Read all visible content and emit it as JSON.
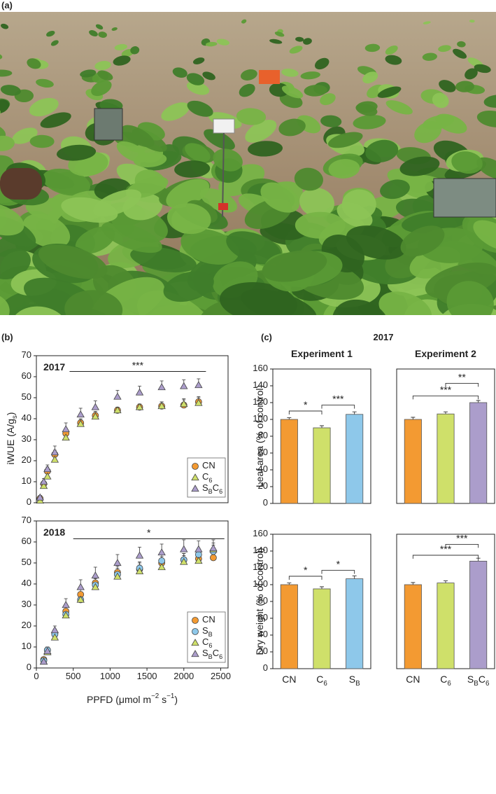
{
  "panel_labels": [
    "(a)",
    "(b)",
    "(c)"
  ],
  "panel_c_title": "2017",
  "chart_data": [
    {
      "type": "scatter",
      "label": "2017",
      "ylabel": "iWUE (A/gs)",
      "x": [
        50,
        100,
        150,
        250,
        400,
        600,
        800,
        1100,
        1400,
        1700,
        2000,
        2200
      ],
      "xlim": [
        0,
        2600
      ],
      "ylim": [
        0,
        70
      ],
      "yticks": [
        0,
        10,
        20,
        30,
        40,
        50,
        60,
        70
      ],
      "legend": "lower right",
      "series": [
        {
          "name": "CN",
          "color": "#f39a32",
          "marker": "circle",
          "values": [
            2,
            9,
            15,
            23,
            33,
            38,
            41.5,
            44,
            45.5,
            46,
            46.5,
            48
          ],
          "errors": [
            1,
            1.5,
            2,
            2,
            2,
            2,
            2,
            1.5,
            1.5,
            2,
            2.5,
            2.5
          ]
        },
        {
          "name": "C6",
          "color": "#cfe06a",
          "marker": "triangle",
          "values": [
            1,
            8,
            12.5,
            20.5,
            31,
            37.5,
            41,
            44,
            45.5,
            46,
            47,
            47.5
          ],
          "errors": [
            1,
            1.5,
            2,
            2,
            2,
            2,
            2,
            1.5,
            1.5,
            2,
            2.5,
            2.5
          ]
        },
        {
          "name": "SBC6",
          "color": "#ab9dcb",
          "marker": "triangle",
          "values": [
            2.5,
            10,
            16,
            24,
            35,
            42,
            45.5,
            50.5,
            52.5,
            55,
            55.5,
            56
          ],
          "errors": [
            1,
            1.5,
            2,
            3,
            3,
            3,
            3,
            3,
            3,
            3,
            3,
            3
          ]
        }
      ],
      "significance": {
        "label": "***",
        "xrange": [
          450,
          2300
        ],
        "y": 62.5
      }
    },
    {
      "type": "scatter",
      "label": "2018",
      "xlabel": "PPFD (μmol m−2 s−1)",
      "x": [
        100,
        150,
        250,
        400,
        600,
        800,
        1100,
        1400,
        1700,
        2000,
        2200,
        2400
      ],
      "xlim": [
        0,
        2600
      ],
      "xticks": [
        0,
        500,
        1000,
        1500,
        2000,
        2500
      ],
      "ylim": [
        0,
        70
      ],
      "yticks": [
        0,
        10,
        20,
        30,
        40,
        50,
        60,
        70
      ],
      "legend": "lower right",
      "series": [
        {
          "name": "CN",
          "color": "#f39a32",
          "marker": "circle",
          "values": [
            4,
            8.5,
            16.5,
            27,
            35,
            40.5,
            45.5,
            47,
            50,
            51.5,
            52,
            52.5
          ],
          "errors": [
            1,
            1.5,
            2,
            2.5,
            3,
            3,
            3,
            3,
            3,
            3,
            3,
            3
          ]
        },
        {
          "name": "SB",
          "color": "#8ec8ea",
          "marker": "circle",
          "values": [
            3.5,
            8.5,
            16,
            25.5,
            32.5,
            39.5,
            44.5,
            47.5,
            51,
            51.5,
            54,
            55.5
          ],
          "errors": [
            1,
            1.5,
            2,
            2.5,
            3,
            3,
            3,
            3,
            3,
            3,
            3,
            3
          ]
        },
        {
          "name": "C6",
          "color": "#cfe06a",
          "marker": "triangle",
          "values": [
            3,
            7.5,
            14.5,
            25,
            32.5,
            38.5,
            43.5,
            46,
            48,
            50.5,
            51,
            56.5
          ],
          "errors": [
            1,
            1.5,
            2,
            2.5,
            3,
            3,
            3,
            3,
            3,
            3,
            3,
            3
          ]
        },
        {
          "name": "SBC6",
          "color": "#ab9dcb",
          "marker": "triangle",
          "values": [
            3,
            8,
            18,
            30,
            38.5,
            44,
            50,
            53.5,
            55,
            56.5,
            56.5,
            57
          ],
          "errors": [
            1,
            1.5,
            2,
            3,
            3.5,
            4,
            4,
            4,
            4,
            4.5,
            4,
            4
          ]
        }
      ],
      "significance": {
        "label": "*",
        "xrange": [
          500,
          2550
        ],
        "y": 61.5
      }
    },
    {
      "type": "bar",
      "subtitle": "Experiment 1",
      "ylabel": "Leaf area (% of control)",
      "values": [
        100,
        90,
        106
      ],
      "errors": [
        2,
        2.5,
        3
      ],
      "colors": [
        "#f39a32",
        "#cfe06a",
        "#8ec8ea"
      ],
      "ylim": [
        0,
        160
      ],
      "yticks": [
        0,
        20,
        40,
        60,
        80,
        100,
        120,
        140,
        160
      ],
      "brackets": [
        {
          "between": [
            0,
            1
          ],
          "y": 110,
          "label": "*"
        },
        {
          "between": [
            1,
            2
          ],
          "y": 117,
          "label": "***"
        }
      ]
    },
    {
      "type": "bar",
      "subtitle": "Experiment 2",
      "values": [
        100,
        106.5,
        120
      ],
      "errors": [
        2.5,
        2.5,
        2.5
      ],
      "colors": [
        "#f39a32",
        "#cfe06a",
        "#ab9dcb"
      ],
      "ylim": [
        0,
        160
      ],
      "brackets": [
        {
          "between": [
            1,
            2
          ],
          "y": 143,
          "label": "**"
        },
        {
          "between": [
            0,
            2
          ],
          "y": 128,
          "label": "***"
        }
      ]
    },
    {
      "type": "bar",
      "ylabel": "Dry weight (% of control)",
      "categories": [
        "CN",
        "C6",
        "SB"
      ],
      "values": [
        100,
        95,
        107
      ],
      "errors": [
        2,
        2.5,
        3.5
      ],
      "colors": [
        "#f39a32",
        "#cfe06a",
        "#8ec8ea"
      ],
      "ylim": [
        0,
        160
      ],
      "yticks": [
        0,
        20,
        40,
        60,
        80,
        100,
        120,
        140,
        160
      ],
      "brackets": [
        {
          "between": [
            0,
            1
          ],
          "y": 110,
          "label": "*"
        },
        {
          "between": [
            1,
            2
          ],
          "y": 117,
          "label": "*"
        }
      ]
    },
    {
      "type": "bar",
      "categories": [
        "CN",
        "C6",
        "SBC6"
      ],
      "values": [
        100,
        102,
        128
      ],
      "errors": [
        2.5,
        2.5,
        3.5
      ],
      "colors": [
        "#f39a32",
        "#cfe06a",
        "#ab9dcb"
      ],
      "ylim": [
        0,
        160
      ],
      "brackets": [
        {
          "between": [
            1,
            2
          ],
          "y": 148,
          "label": "***"
        },
        {
          "between": [
            0,
            2
          ],
          "y": 135,
          "label": "***"
        }
      ]
    }
  ]
}
